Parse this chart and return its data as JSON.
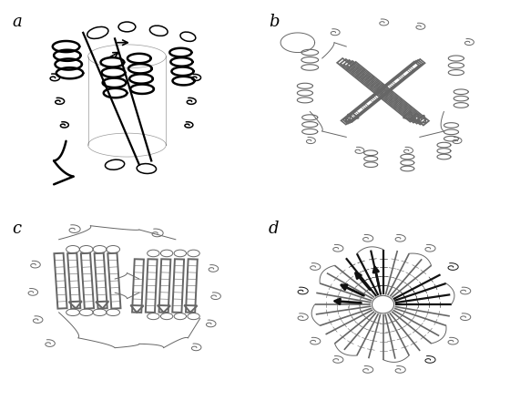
{
  "background_color": "#ffffff",
  "labels": [
    "a",
    "b",
    "c",
    "d"
  ],
  "label_fontsize": 13,
  "label_style": "italic",
  "figure_width": 5.6,
  "figure_height": 4.52,
  "dpi": 100,
  "color_a": "#000000",
  "color_bcd": "#666666",
  "color_dark_d": "#111111",
  "lw_helix_a": 1.8,
  "lw_helix_b": 0.8,
  "lw_beta": 1.2,
  "lw_loop": 0.7
}
